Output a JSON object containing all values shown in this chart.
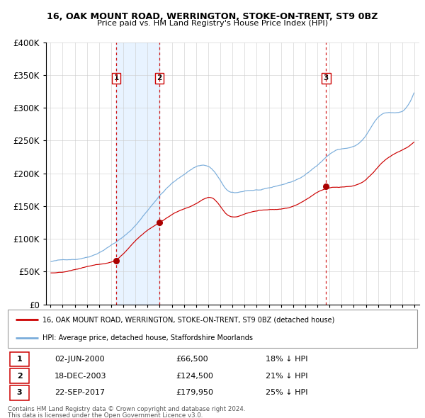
{
  "title1": "16, OAK MOUNT ROAD, WERRINGTON, STOKE-ON-TRENT, ST9 0BZ",
  "title2": "Price paid vs. HM Land Registry's House Price Index (HPI)",
  "legend_property": "16, OAK MOUNT ROAD, WERRINGTON, STOKE-ON-TRENT, ST9 0BZ (detached house)",
  "legend_hpi": "HPI: Average price, detached house, Staffordshire Moorlands",
  "footer1": "Contains HM Land Registry data © Crown copyright and database right 2024.",
  "footer2": "This data is licensed under the Open Government Licence v3.0.",
  "ylim": [
    0,
    400000
  ],
  "yticks": [
    0,
    50000,
    100000,
    150000,
    200000,
    250000,
    300000,
    350000,
    400000
  ],
  "color_property": "#cc0000",
  "color_hpi": "#7aaddb",
  "color_vline": "#cc0000",
  "color_shade": "#ddeeff",
  "xlim_left": 1994.62,
  "xlim_right": 2025.38,
  "transactions": [
    {
      "num": 1,
      "date_label": "02-JUN-2000",
      "date_x": 2000.42,
      "price": 66500,
      "pct": "18% ↓ HPI"
    },
    {
      "num": 2,
      "date_label": "18-DEC-2003",
      "date_x": 2003.96,
      "price": 124500,
      "pct": "21% ↓ HPI"
    },
    {
      "num": 3,
      "date_label": "22-SEP-2017",
      "date_x": 2017.72,
      "price": 179950,
      "pct": "25% ↓ HPI"
    }
  ]
}
